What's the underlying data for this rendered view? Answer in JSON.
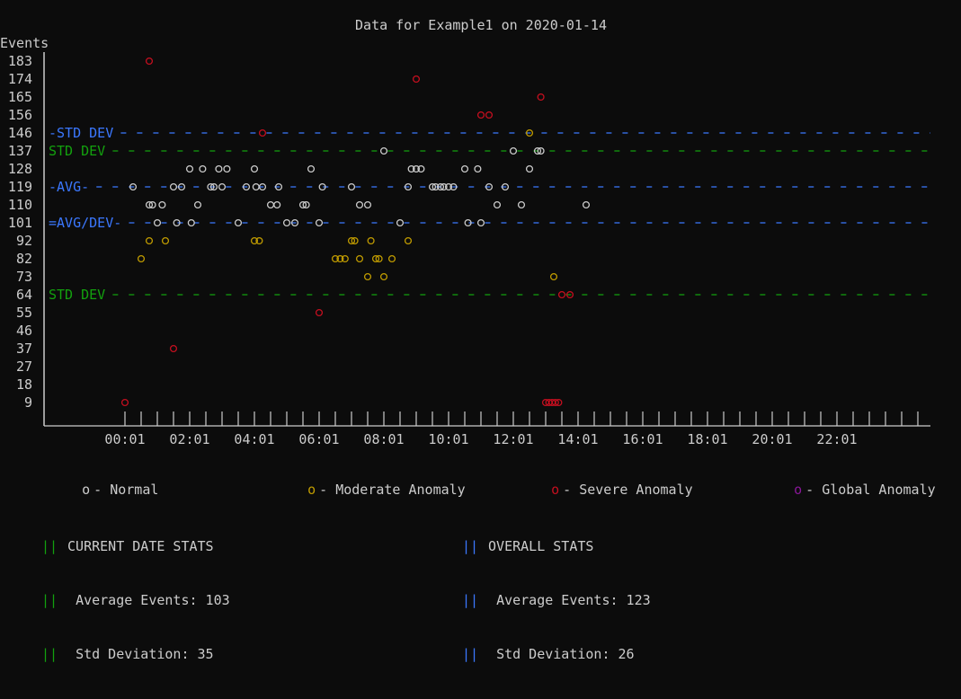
{
  "chart_data": {
    "type": "scatter",
    "title": "Data for Example1 on 2020-01-14",
    "ylabel": "Events",
    "ylim": [
      0,
      183
    ],
    "y_ticks": [
      "183",
      "174",
      "165",
      "156",
      "146",
      "137",
      "128",
      "119",
      "110",
      "101",
      "92",
      "82",
      "73",
      "64",
      "55",
      "46",
      "37",
      "27",
      "18",
      "9"
    ],
    "x_ticks": [
      "00:01",
      "02:01",
      "04:01",
      "06:01",
      "08:01",
      "10:01",
      "12:01",
      "14:01",
      "16:01",
      "18:01",
      "20:01",
      "22:01"
    ],
    "reference_lines": [
      {
        "label": "-STD DEV",
        "value": 146,
        "color": "#3b78ff"
      },
      {
        "label": "STD DEV",
        "value": 137,
        "color": "#13a10e"
      },
      {
        "label": "-AVG-",
        "value": 119,
        "color": "#3b78ff"
      },
      {
        "label": "=AVG/DEV-",
        "value": 101,
        "color": "#3b78ff"
      },
      {
        "label": "STD DEV",
        "value": 64,
        "color": "#13a10e"
      }
    ],
    "series": [
      {
        "name": "Normal",
        "color": "#cccccc",
        "points": [
          [
            0.25,
            119
          ],
          [
            0.75,
            110
          ],
          [
            0.85,
            110
          ],
          [
            1.0,
            101
          ],
          [
            1.15,
            110
          ],
          [
            1.5,
            119
          ],
          [
            1.6,
            101
          ],
          [
            1.75,
            119
          ],
          [
            2.0,
            128
          ],
          [
            2.05,
            101
          ],
          [
            2.25,
            110
          ],
          [
            2.4,
            128
          ],
          [
            2.65,
            119
          ],
          [
            2.75,
            119
          ],
          [
            2.9,
            128
          ],
          [
            3.0,
            119
          ],
          [
            3.15,
            128
          ],
          [
            3.5,
            101
          ],
          [
            3.75,
            119
          ],
          [
            4.0,
            128
          ],
          [
            4.05,
            119
          ],
          [
            4.25,
            119
          ],
          [
            4.5,
            110
          ],
          [
            4.7,
            110
          ],
          [
            4.75,
            119
          ],
          [
            5.0,
            101
          ],
          [
            5.25,
            101
          ],
          [
            5.5,
            110
          ],
          [
            5.6,
            110
          ],
          [
            5.75,
            128
          ],
          [
            6.0,
            101
          ],
          [
            6.1,
            119
          ],
          [
            7.0,
            119
          ],
          [
            7.25,
            110
          ],
          [
            7.5,
            110
          ],
          [
            8.0,
            137
          ],
          [
            8.5,
            101
          ],
          [
            8.75,
            119
          ],
          [
            8.85,
            128
          ],
          [
            9.0,
            128
          ],
          [
            9.15,
            128
          ],
          [
            9.5,
            119
          ],
          [
            9.6,
            119
          ],
          [
            9.75,
            119
          ],
          [
            9.85,
            119
          ],
          [
            10.0,
            119
          ],
          [
            10.15,
            119
          ],
          [
            10.5,
            128
          ],
          [
            10.6,
            101
          ],
          [
            10.9,
            128
          ],
          [
            11.0,
            101
          ],
          [
            11.25,
            119
          ],
          [
            11.5,
            110
          ],
          [
            11.75,
            119
          ],
          [
            12.0,
            137
          ],
          [
            12.25,
            110
          ],
          [
            12.5,
            128
          ],
          [
            12.75,
            137
          ],
          [
            12.85,
            137
          ],
          [
            14.25,
            110
          ]
        ]
      },
      {
        "name": "Moderate Anomaly",
        "color": "#c19c00",
        "points": [
          [
            0.5,
            82
          ],
          [
            0.75,
            92
          ],
          [
            1.25,
            92
          ],
          [
            4.0,
            92
          ],
          [
            4.15,
            92
          ],
          [
            6.5,
            82
          ],
          [
            6.65,
            82
          ],
          [
            6.8,
            82
          ],
          [
            7.0,
            92
          ],
          [
            7.1,
            92
          ],
          [
            7.25,
            82
          ],
          [
            7.5,
            73
          ],
          [
            7.6,
            92
          ],
          [
            7.75,
            82
          ],
          [
            7.85,
            82
          ],
          [
            8.0,
            73
          ],
          [
            8.25,
            82
          ],
          [
            8.75,
            92
          ],
          [
            12.5,
            146
          ],
          [
            13.25,
            73
          ]
        ]
      },
      {
        "name": "Severe Anomaly",
        "color": "#c50f1f",
        "points": [
          [
            0.0,
            9
          ],
          [
            0.75,
            183
          ],
          [
            1.5,
            37
          ],
          [
            6.0,
            55
          ],
          [
            4.25,
            146
          ],
          [
            9.0,
            174
          ],
          [
            11.0,
            156
          ],
          [
            11.25,
            156
          ],
          [
            12.85,
            165
          ],
          [
            13.0,
            9
          ],
          [
            13.1,
            9
          ],
          [
            13.2,
            9
          ],
          [
            13.3,
            9
          ],
          [
            13.4,
            9
          ],
          [
            13.5,
            64
          ],
          [
            13.75,
            64
          ]
        ]
      },
      {
        "name": "Global Anomaly",
        "color": "#881798",
        "points": []
      }
    ]
  },
  "legend": [
    {
      "symbol": "o",
      "label": "- Normal",
      "color": "#cccccc"
    },
    {
      "symbol": "o",
      "label": "- Moderate Anomaly",
      "color": "#c19c00"
    },
    {
      "symbol": "o",
      "label": "- Severe Anomaly",
      "color": "#c50f1f"
    },
    {
      "symbol": "o",
      "label": "- Global Anomaly",
      "color": "#881798"
    }
  ],
  "current_stats": {
    "title": "CURRENT DATE STATS",
    "average": "Average Events: 103",
    "stddev": "Std Deviation: 35",
    "bar": "||",
    "color": "#13a10e"
  },
  "overall_stats": {
    "title": "OVERALL STATS",
    "average": "Average Events: 123",
    "stddev": "Std Deviation: 26",
    "bar": "||",
    "color": "#3b78ff"
  }
}
